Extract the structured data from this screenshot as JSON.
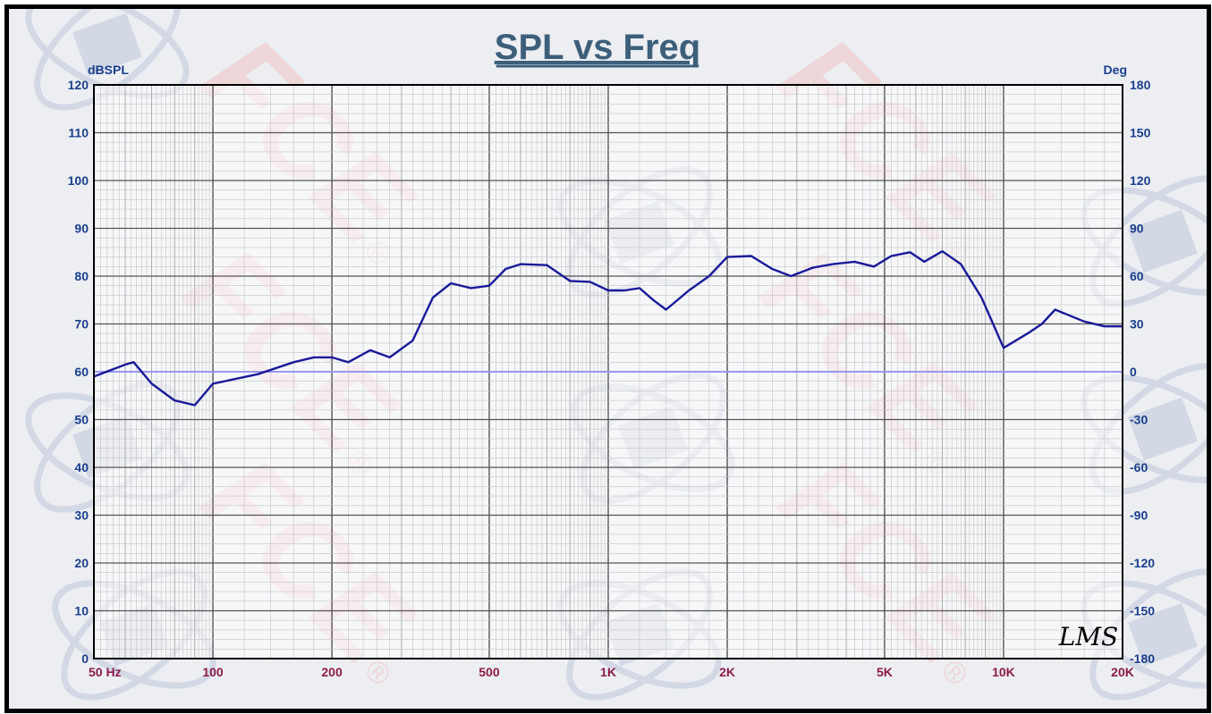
{
  "chart_data": {
    "type": "line",
    "title": "SPL vs Freq",
    "y_unit_left": "dBSPL",
    "y_unit_right": "Deg",
    "x_scale": "log",
    "xlim": [
      50,
      20000
    ],
    "ylim_left": [
      0,
      120
    ],
    "ylim_right": [
      -180,
      180
    ],
    "y_ticks_left": [
      "0",
      "10",
      "20",
      "30",
      "40",
      "50",
      "60",
      "70",
      "80",
      "90",
      "100",
      "110",
      "120"
    ],
    "y_ticks_right": [
      "-180",
      "-150",
      "-120",
      "-90",
      "-60",
      "-30",
      "0",
      "30",
      "60",
      "90",
      "120",
      "150",
      "180"
    ],
    "x_ticks": [
      {
        "value": 50,
        "label": "50  Hz"
      },
      {
        "value": 100,
        "label": "100"
      },
      {
        "value": 200,
        "label": "200"
      },
      {
        "value": 500,
        "label": "500"
      },
      {
        "value": 1000,
        "label": "1K"
      },
      {
        "value": 2000,
        "label": "2K"
      },
      {
        "value": 5000,
        "label": "5K"
      },
      {
        "value": 10000,
        "label": "10K"
      },
      {
        "value": 20000,
        "label": "20K"
      }
    ],
    "grid": true,
    "series": [
      {
        "axis": "left",
        "color": "#1a1a9a",
        "x": [
          50,
          60,
          63,
          70,
          80,
          90,
          100,
          130,
          160,
          180,
          200,
          220,
          250,
          280,
          320,
          360,
          400,
          450,
          500,
          550,
          600,
          700,
          800,
          900,
          1000,
          1100,
          1200,
          1300,
          1400,
          1600,
          1800,
          2000,
          2300,
          2600,
          2900,
          3300,
          3700,
          4200,
          4700,
          5200,
          5800,
          6300,
          7000,
          7800,
          8800,
          10000,
          11500,
          12500,
          13500,
          16000,
          18000,
          20000
        ],
        "values": [
          59,
          61.5,
          62,
          57.5,
          54,
          53,
          57.5,
          59.5,
          62,
          63,
          63,
          62,
          64.5,
          63,
          66.5,
          75.5,
          78.5,
          77.5,
          78,
          81.5,
          82.5,
          82.3,
          79,
          78.8,
          77,
          77,
          77.5,
          75,
          73,
          77,
          80,
          84,
          84.2,
          81.5,
          80,
          81.8,
          82.5,
          83,
          82,
          84.2,
          85,
          83,
          85.2,
          82.5,
          75.5,
          65,
          68,
          70,
          73,
          70.5,
          69.5,
          69.5
        ]
      },
      {
        "axis": "left",
        "color": "#9999ee",
        "x": [
          50,
          20000
        ],
        "values": [
          60,
          60
        ]
      }
    ]
  },
  "watermark": {
    "text": "FCE",
    "reg": "®"
  },
  "signature": "LMS"
}
